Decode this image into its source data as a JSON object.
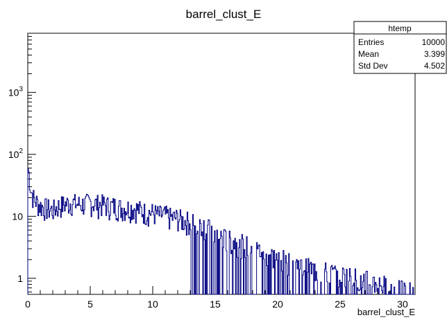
{
  "chart_data": {
    "type": "histogram",
    "title": "barrel_clust_E",
    "xlabel": "barrel_clust_E",
    "ylabel": "",
    "xlim": [
      0,
      31
    ],
    "ylim": [
      0.55,
      9000
    ],
    "log_y": true,
    "grid": false,
    "line_color": "#000080",
    "x_ticks": [
      "0",
      "5",
      "10",
      "15",
      "20",
      "25",
      "30"
    ],
    "y_ticks": [
      {
        "base": "1",
        "exp": ""
      },
      {
        "base": "10",
        "exp": ""
      },
      {
        "base": "10",
        "exp": "2"
      },
      {
        "base": "10",
        "exp": "3"
      }
    ],
    "bin_width": 0.0625,
    "x": [
      0.0,
      0.25,
      0.5,
      1.0,
      1.5,
      2.0,
      2.5,
      3.0,
      3.5,
      4.0,
      4.5,
      5.0,
      5.5,
      6.0,
      6.5,
      7.0,
      7.5,
      8.0,
      8.5,
      9.0,
      9.5,
      10.0,
      10.5,
      11.0,
      11.5,
      12.0,
      12.5,
      13.0,
      13.5,
      14.0,
      14.5,
      15.0,
      15.5,
      16.0,
      17.0,
      18.0,
      19.0,
      20.0,
      21.0,
      22.0,
      23.0,
      24.0,
      25.0,
      26.0,
      27.0,
      28.0,
      29.0,
      30.0
    ],
    "y": [
      60,
      25,
      18,
      14,
      13,
      12,
      14,
      15,
      16,
      15,
      15,
      16,
      15,
      15,
      14,
      14,
      13,
      13,
      13,
      12,
      11,
      11,
      10,
      10,
      9,
      9,
      8,
      8,
      7,
      7,
      6,
      5,
      4.5,
      4,
      3.5,
      3,
      2.5,
      2,
      1.8,
      1.5,
      1.3,
      1.2,
      1.1,
      1.0,
      0.9,
      0.8,
      0.7,
      0.6
    ],
    "stats": {
      "name": "htemp",
      "entries_label": "Entries",
      "entries": "10000",
      "mean_label": "Mean",
      "mean": "3.399",
      "std_label": "Std Dev",
      "std": "4.502"
    }
  }
}
